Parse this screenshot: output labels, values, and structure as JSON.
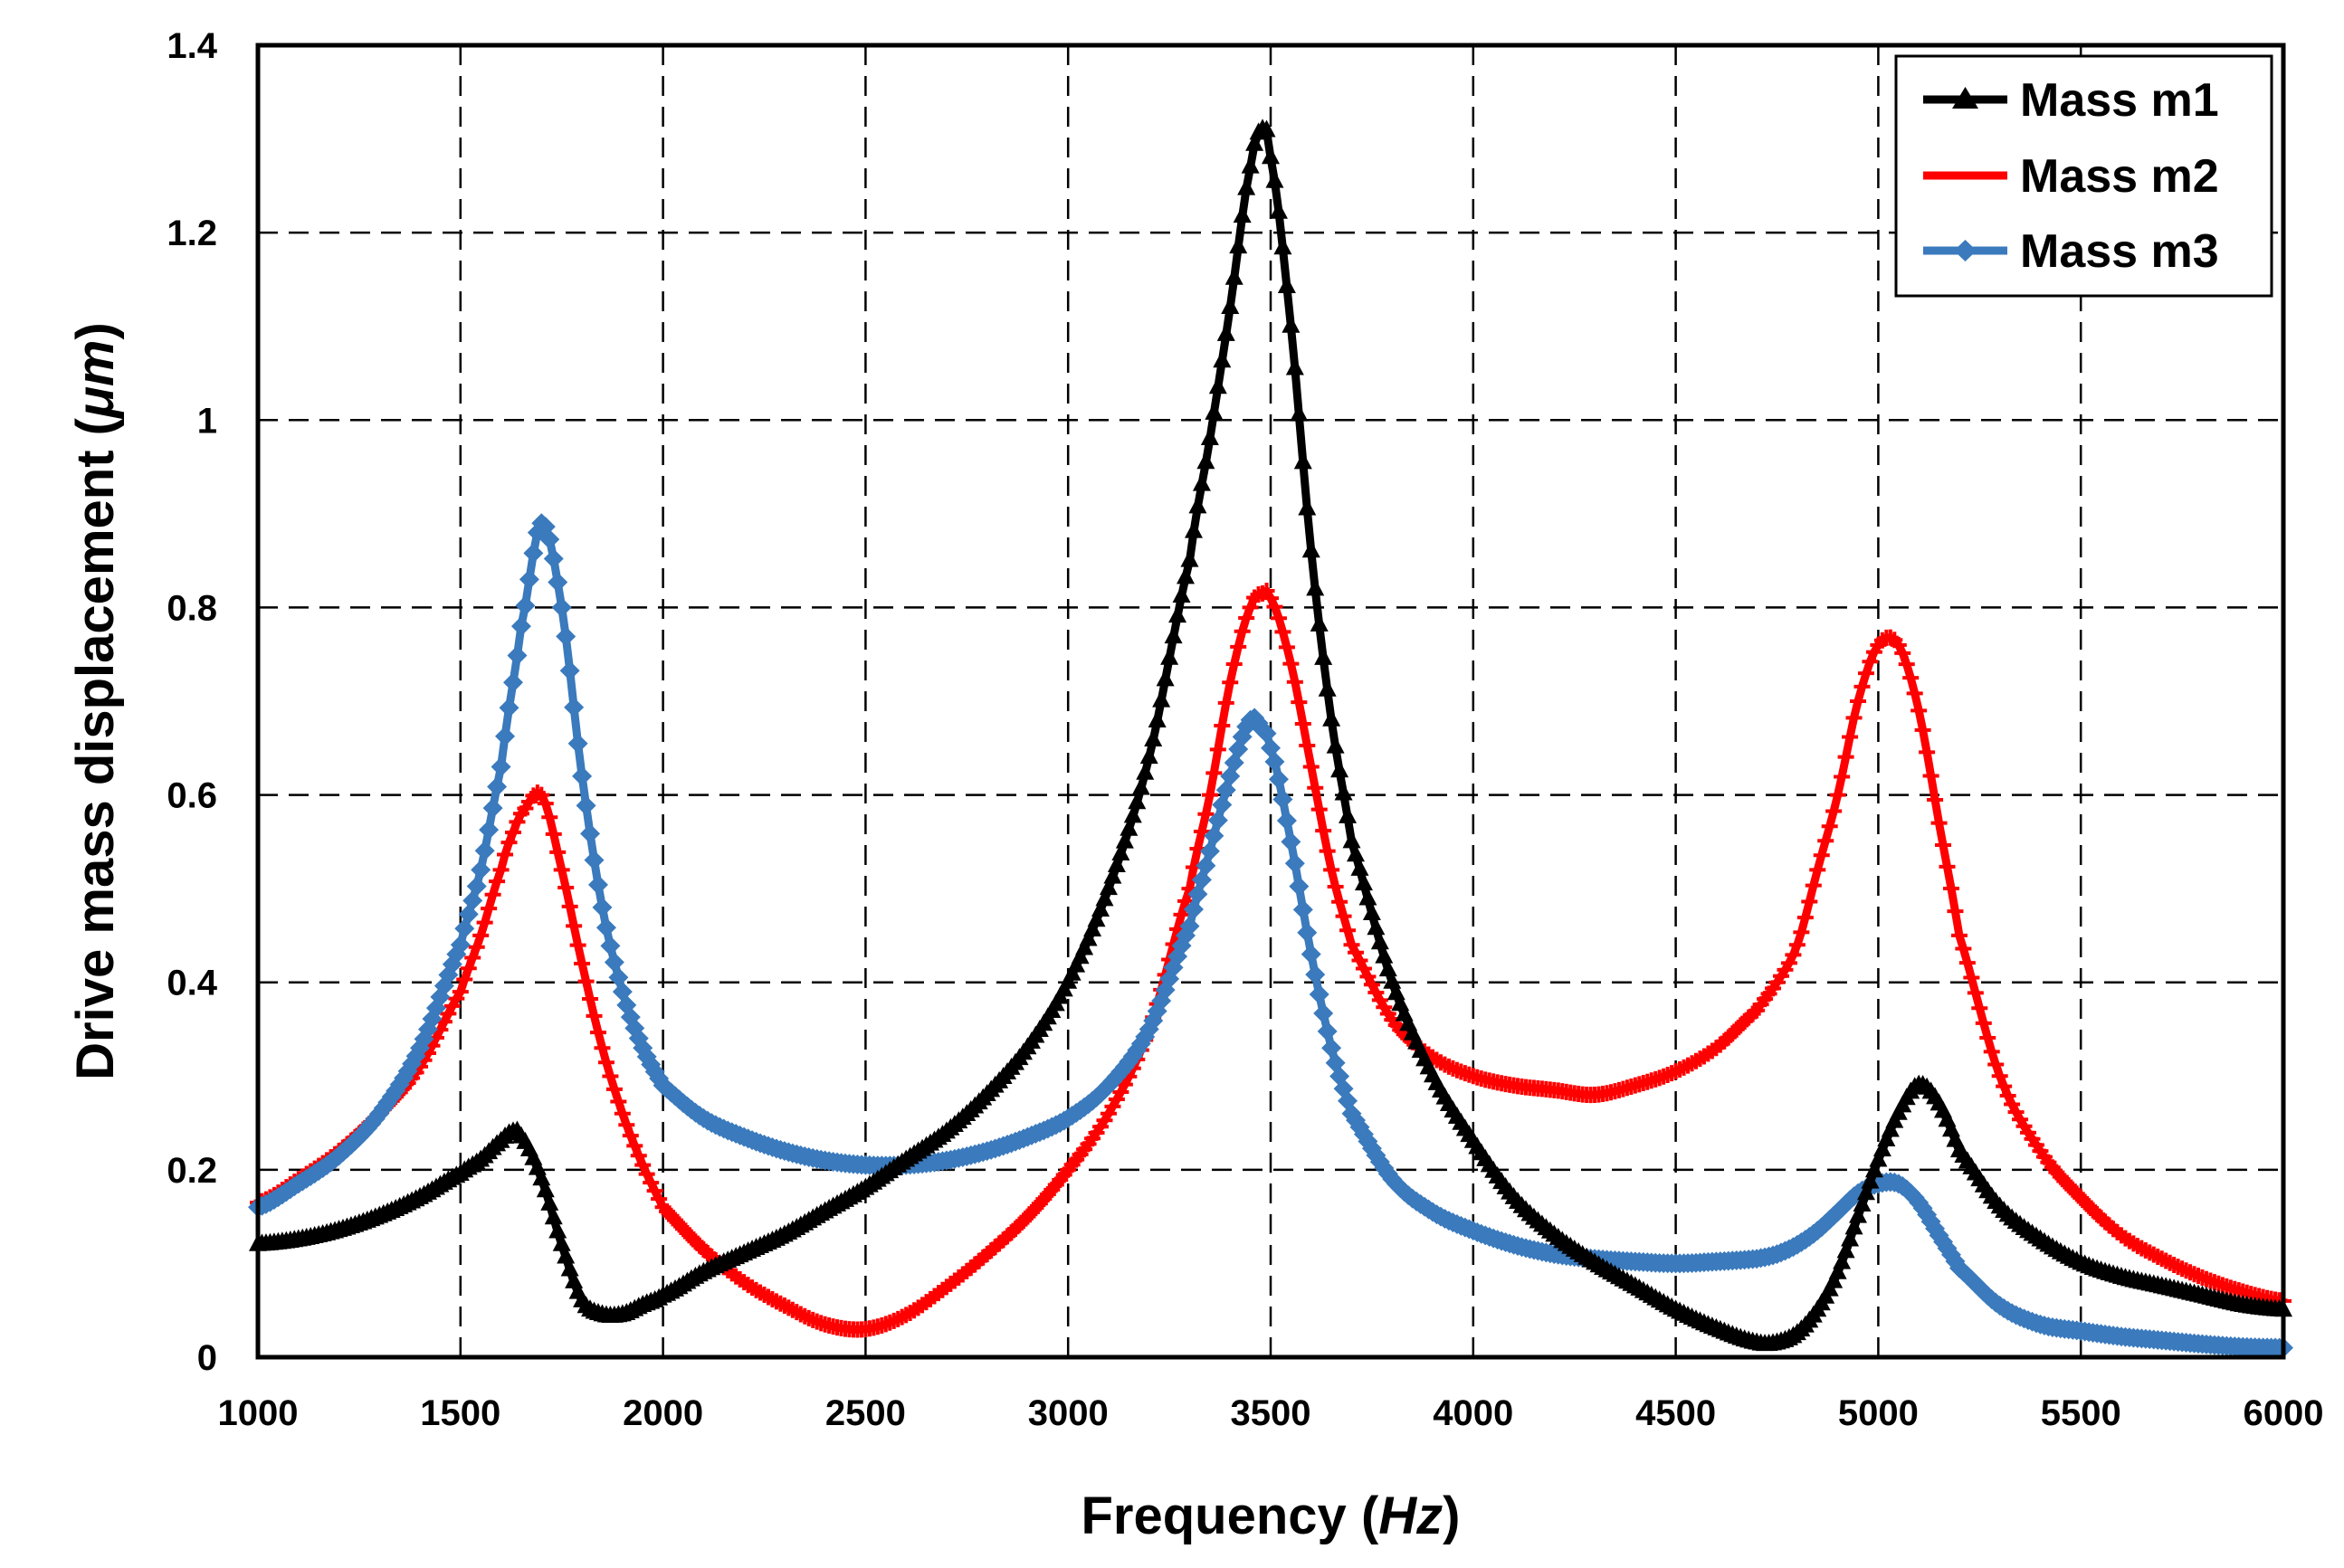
{
  "chart_data": {
    "type": "line",
    "title": "",
    "xlabel": "Frequency",
    "xlabel_unit": "Hz",
    "ylabel": "Drive mass displacement",
    "ylabel_unit": "μm",
    "xlim": [
      1000,
      6000
    ],
    "ylim": [
      0,
      1.4
    ],
    "xticks": [
      1000,
      1500,
      2000,
      2500,
      3000,
      3500,
      4000,
      4500,
      5000,
      5500,
      6000
    ],
    "yticks": [
      0,
      0.2,
      0.4,
      0.6,
      0.8,
      1,
      1.2,
      1.4
    ],
    "xtick_labels": [
      "1000",
      "1500",
      "2000",
      "2500",
      "3000",
      "3500",
      "4000",
      "4500",
      "5000",
      "5500",
      "6000"
    ],
    "ytick_labels": [
      "0",
      "0.2",
      "0.4",
      "0.6",
      "0.8",
      "1",
      "1.2",
      "1.4"
    ],
    "grid": true,
    "legend_position": "top-right",
    "x": [
      1000,
      1100,
      1200,
      1300,
      1400,
      1500,
      1550,
      1600,
      1630,
      1650,
      1700,
      1750,
      1800,
      1850,
      1900,
      1950,
      2000,
      2100,
      2200,
      2300,
      2400,
      2500,
      2600,
      2700,
      2800,
      2900,
      3000,
      3100,
      3200,
      3300,
      3350,
      3400,
      3450,
      3480,
      3500,
      3550,
      3600,
      3650,
      3700,
      3800,
      3900,
      4000,
      4100,
      4200,
      4300,
      4400,
      4500,
      4600,
      4700,
      4750,
      4800,
      4850,
      4900,
      4950,
      5000,
      5050,
      5100,
      5150,
      5200,
      5300,
      5400,
      5500,
      5600,
      5700,
      5800,
      5900,
      6000
    ],
    "series": [
      {
        "name": "Mass m1",
        "color": "#000000",
        "marker": "triangle",
        "values": [
          0.12,
          0.125,
          0.135,
          0.15,
          0.17,
          0.195,
          0.21,
          0.23,
          0.24,
          0.235,
          0.19,
          0.12,
          0.06,
          0.045,
          0.045,
          0.055,
          0.065,
          0.09,
          0.11,
          0.13,
          0.155,
          0.18,
          0.21,
          0.24,
          0.28,
          0.33,
          0.4,
          0.5,
          0.64,
          0.85,
          0.98,
          1.12,
          1.27,
          1.31,
          1.28,
          1.1,
          0.86,
          0.68,
          0.55,
          0.4,
          0.3,
          0.23,
          0.17,
          0.13,
          0.1,
          0.075,
          0.05,
          0.03,
          0.015,
          0.015,
          0.025,
          0.05,
          0.09,
          0.15,
          0.21,
          0.26,
          0.29,
          0.27,
          0.22,
          0.16,
          0.125,
          0.1,
          0.085,
          0.075,
          0.065,
          0.055,
          0.05
        ]
      },
      {
        "name": "Mass m2",
        "color": "#ff0000",
        "marker": "plus",
        "values": [
          0.165,
          0.19,
          0.22,
          0.26,
          0.31,
          0.39,
          0.45,
          0.52,
          0.56,
          0.58,
          0.6,
          0.52,
          0.42,
          0.33,
          0.26,
          0.205,
          0.16,
          0.115,
          0.08,
          0.055,
          0.035,
          0.03,
          0.045,
          0.075,
          0.11,
          0.15,
          0.2,
          0.26,
          0.35,
          0.5,
          0.6,
          0.72,
          0.8,
          0.815,
          0.81,
          0.74,
          0.63,
          0.52,
          0.44,
          0.36,
          0.32,
          0.3,
          0.29,
          0.285,
          0.28,
          0.29,
          0.305,
          0.33,
          0.37,
          0.4,
          0.44,
          0.52,
          0.6,
          0.7,
          0.76,
          0.76,
          0.69,
          0.57,
          0.45,
          0.3,
          0.22,
          0.17,
          0.13,
          0.105,
          0.085,
          0.07,
          0.06
        ]
      },
      {
        "name": "Mass m3",
        "color": "#3a7abd",
        "marker": "diamond",
        "values": [
          0.16,
          0.185,
          0.215,
          0.26,
          0.33,
          0.44,
          0.52,
          0.63,
          0.72,
          0.78,
          0.89,
          0.8,
          0.62,
          0.48,
          0.39,
          0.33,
          0.29,
          0.255,
          0.235,
          0.22,
          0.21,
          0.205,
          0.205,
          0.21,
          0.22,
          0.235,
          0.255,
          0.29,
          0.35,
          0.46,
          0.54,
          0.62,
          0.68,
          0.67,
          0.65,
          0.55,
          0.43,
          0.33,
          0.26,
          0.19,
          0.155,
          0.135,
          0.12,
          0.11,
          0.105,
          0.102,
          0.1,
          0.102,
          0.105,
          0.11,
          0.12,
          0.135,
          0.155,
          0.175,
          0.185,
          0.185,
          0.165,
          0.13,
          0.095,
          0.055,
          0.035,
          0.028,
          0.022,
          0.018,
          0.014,
          0.011,
          0.01
        ]
      }
    ]
  }
}
